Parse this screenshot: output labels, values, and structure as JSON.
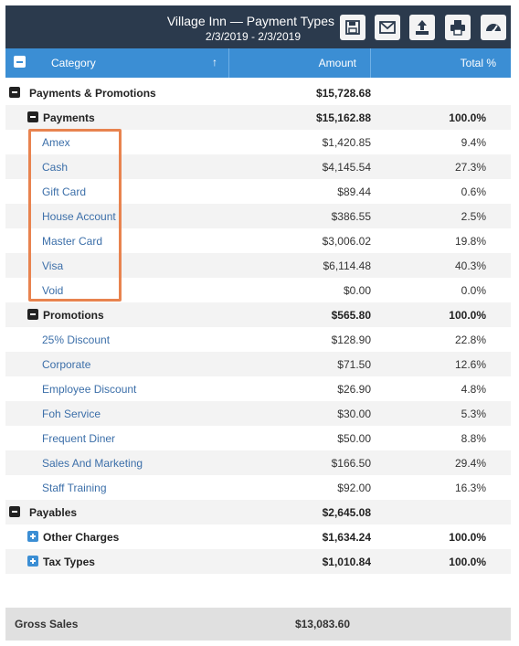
{
  "header": {
    "title": "Village Inn — Payment Types",
    "date_range": "2/3/2019 - 2/3/2019",
    "buttons": [
      "save-icon",
      "email-icon",
      "export-icon",
      "print-icon",
      "dashboard-icon"
    ]
  },
  "columns": {
    "category": "Category",
    "amount": "Amount",
    "total_pct": "Total %",
    "sort_indicator": "↑"
  },
  "rows": [
    {
      "name": "Payments & Promotions",
      "amount": "$15,728.68",
      "pct": "",
      "level": 0,
      "toggle": "minus"
    },
    {
      "name": "Payments",
      "amount": "$15,162.88",
      "pct": "100.0%",
      "level": 1,
      "toggle": "minus"
    },
    {
      "name": "Amex",
      "amount": "$1,420.85",
      "pct": "9.4%",
      "level": 2
    },
    {
      "name": "Cash",
      "amount": "$4,145.54",
      "pct": "27.3%",
      "level": 2
    },
    {
      "name": "Gift Card",
      "amount": "$89.44",
      "pct": "0.6%",
      "level": 2
    },
    {
      "name": "House Account",
      "amount": "$386.55",
      "pct": "2.5%",
      "level": 2
    },
    {
      "name": "Master Card",
      "amount": "$3,006.02",
      "pct": "19.8%",
      "level": 2
    },
    {
      "name": "Visa",
      "amount": "$6,114.48",
      "pct": "40.3%",
      "level": 2
    },
    {
      "name": "Void",
      "amount": "$0.00",
      "pct": "0.0%",
      "level": 2
    },
    {
      "name": "Promotions",
      "amount": "$565.80",
      "pct": "100.0%",
      "level": 1,
      "toggle": "minus"
    },
    {
      "name": "25% Discount",
      "amount": "$128.90",
      "pct": "22.8%",
      "level": 2
    },
    {
      "name": "Corporate",
      "amount": "$71.50",
      "pct": "12.6%",
      "level": 2
    },
    {
      "name": "Employee Discount",
      "amount": "$26.90",
      "pct": "4.8%",
      "level": 2
    },
    {
      "name": "Foh Service",
      "amount": "$30.00",
      "pct": "5.3%",
      "level": 2
    },
    {
      "name": "Frequent Diner",
      "amount": "$50.00",
      "pct": "8.8%",
      "level": 2
    },
    {
      "name": "Sales And Marketing",
      "amount": "$166.50",
      "pct": "29.4%",
      "level": 2
    },
    {
      "name": "Staff Training",
      "amount": "$92.00",
      "pct": "16.3%",
      "level": 2
    },
    {
      "name": "Payables",
      "amount": "$2,645.08",
      "pct": "",
      "level": 0,
      "toggle": "minus"
    },
    {
      "name": "Other Charges",
      "amount": "$1,634.24",
      "pct": "100.0%",
      "level": 1,
      "toggle": "plus"
    },
    {
      "name": "Tax Types",
      "amount": "$1,010.84",
      "pct": "100.0%",
      "level": 1,
      "toggle": "plus"
    }
  ],
  "footer": {
    "label": "Gross Sales",
    "value": "$13,083.60"
  },
  "colors": {
    "header_bg": "#2b3a4d",
    "column_header_bg": "#3b8ed4",
    "link_text": "#3c6fa9",
    "highlight": "#e8834f"
  }
}
